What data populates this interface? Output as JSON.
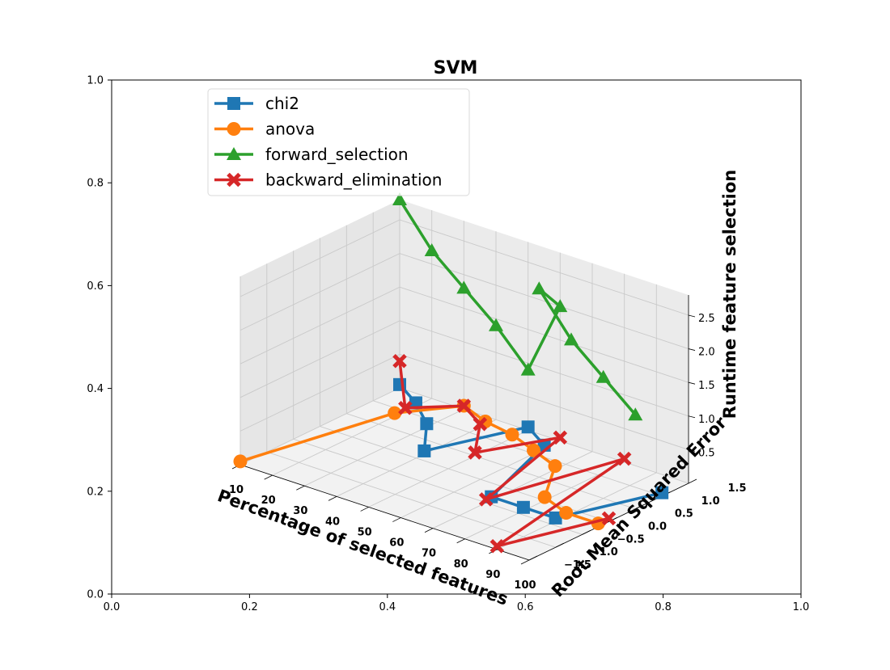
{
  "chart_data": {
    "type": "line-3d",
    "title": "SVM",
    "xlabel": "Percentage of selected features",
    "ylabel": "Root Mean Squared Error",
    "zlabel": "Runtime feature selection",
    "xlim": [
      10,
      100
    ],
    "ylim": [
      -1.5,
      1.5
    ],
    "zlim": [
      0,
      2.8
    ],
    "x_ticks": [
      "10",
      "20",
      "30",
      "40",
      "50",
      "60",
      "70",
      "80",
      "90",
      "100"
    ],
    "y_ticks": [
      "−1.5",
      "−1.0",
      "−0.5",
      "0.0",
      "0.5",
      "1.0",
      "1.5"
    ],
    "z_ticks": [
      "0.5",
      "1.0",
      "1.5",
      "2.0",
      "2.5"
    ],
    "outer_axes": {
      "xlim": [
        0,
        1
      ],
      "ylim": [
        0,
        1
      ],
      "x_ticks": [
        "0.0",
        "0.2",
        "0.4",
        "0.6",
        "0.8",
        "1.0"
      ],
      "y_ticks": [
        "0.0",
        "0.2",
        "0.4",
        "0.6",
        "0.8",
        "1.0"
      ]
    },
    "legend_position": "upper-left",
    "series": [
      {
        "name": "chi2",
        "color": "#1f77b4",
        "marker": "square",
        "points": [
          [
            10,
            1.5,
            0.05
          ],
          [
            20,
            1.2,
            0.05
          ],
          [
            30,
            0.8,
            0.05
          ],
          [
            40,
            0.15,
            0.05
          ],
          [
            50,
            1.5,
            0.05
          ],
          [
            60,
            1.2,
            0.05
          ],
          [
            70,
            -0.4,
            0.05
          ],
          [
            80,
            -0.4,
            0.05
          ],
          [
            90,
            -0.4,
            0.05
          ],
          [
            100,
            1.0,
            0.05
          ]
        ]
      },
      {
        "name": "anova",
        "color": "#ff7f0e",
        "marker": "circle",
        "points": [
          [
            10,
            -1.5,
            0.05
          ],
          [
            20,
            0.8,
            0.05
          ],
          [
            30,
            1.5,
            0.05
          ],
          [
            40,
            1.3,
            0.05
          ],
          [
            50,
            1.2,
            0.05
          ],
          [
            60,
            1.0,
            0.05
          ],
          [
            70,
            0.8,
            0.05
          ],
          [
            80,
            0.0,
            0.05
          ],
          [
            90,
            -0.2,
            0.05
          ],
          [
            100,
            -0.2,
            0.05
          ]
        ]
      },
      {
        "name": "forward_selection",
        "color": "#2ca02c",
        "marker": "triangle",
        "points": [
          [
            10,
            1.5,
            2.8
          ],
          [
            20,
            1.5,
            2.2
          ],
          [
            30,
            1.5,
            1.8
          ],
          [
            40,
            1.5,
            1.4
          ],
          [
            50,
            1.5,
            0.9
          ],
          [
            60,
            1.5,
            2.0
          ],
          [
            70,
            0.5,
            2.8
          ],
          [
            80,
            0.5,
            2.2
          ],
          [
            90,
            0.5,
            1.8
          ],
          [
            100,
            0.5,
            1.4
          ]
        ]
      },
      {
        "name": "backward_elimination",
        "color": "#d62728",
        "marker": "x",
        "points": [
          [
            10,
            1.5,
            0.4
          ],
          [
            20,
            1.0,
            0.05
          ],
          [
            30,
            1.5,
            0.05
          ],
          [
            40,
            1.2,
            0.05
          ],
          [
            50,
            0.5,
            0.05
          ],
          [
            60,
            1.5,
            0.05
          ],
          [
            70,
            -0.5,
            0.05
          ],
          [
            80,
            1.5,
            0.05
          ],
          [
            90,
            -1.5,
            0.05
          ],
          [
            100,
            0.0,
            0.05
          ]
        ]
      }
    ]
  }
}
